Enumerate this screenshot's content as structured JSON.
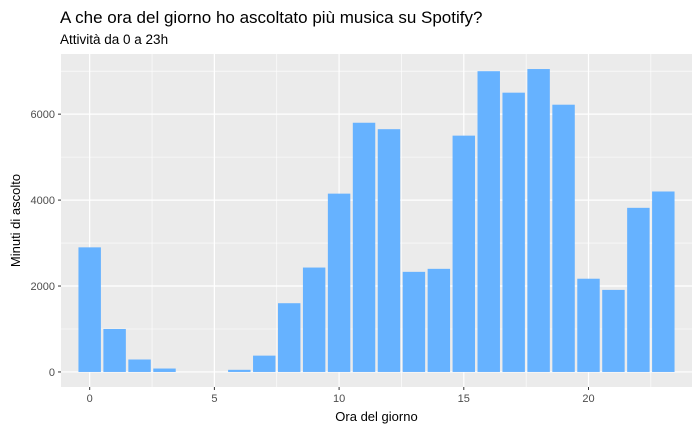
{
  "chart_data": {
    "type": "bar",
    "title": "A che ora del giorno ho ascoltato più musica su Spotify?",
    "subtitle": "Attività da 0 a 23h",
    "xlabel": "Ora del giorno",
    "ylabel": "Minuti di ascolto",
    "x": [
      0,
      1,
      2,
      3,
      4,
      5,
      6,
      7,
      8,
      9,
      10,
      11,
      12,
      13,
      14,
      15,
      16,
      17,
      18,
      19,
      20,
      21,
      22,
      23
    ],
    "values": [
      2900,
      1000,
      290,
      80,
      0,
      0,
      50,
      380,
      1600,
      2430,
      4150,
      5800,
      5650,
      2330,
      2400,
      5500,
      7000,
      6500,
      7050,
      6220,
      2170,
      1910,
      3820,
      4200
    ],
    "xlim": [
      -1.15,
      24.15
    ],
    "ylim": [
      -350,
      7400
    ],
    "xticks": [
      0,
      5,
      10,
      15,
      20
    ],
    "yticks": [
      0,
      2000,
      4000,
      6000
    ],
    "bar_color": "#66B2FF",
    "panel_color": "#EBEBEB",
    "grid": true,
    "legend": "none"
  }
}
